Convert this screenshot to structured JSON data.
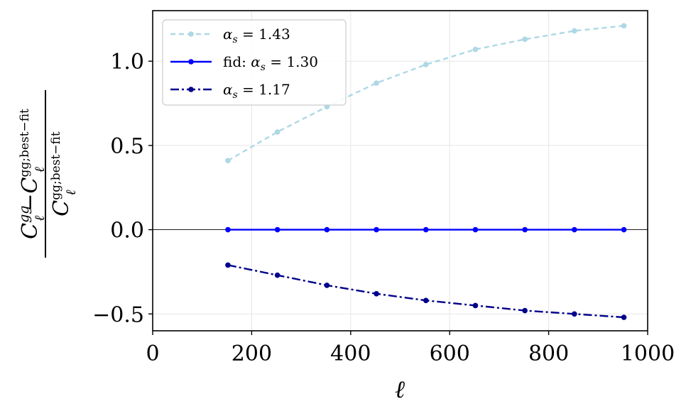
{
  "chart_data": {
    "type": "line",
    "title": "",
    "xlabel": "ℓ",
    "ylabel": {
      "num_a": "C",
      "num_a_sup": "gg",
      "num_a_sub": "ℓ",
      "minus": "−",
      "num_b": "C",
      "num_b_sup": "gg;best−fit",
      "num_b_sub": "ℓ",
      "den": "C",
      "den_sup": "gg;best−fit",
      "den_sub": "ℓ"
    },
    "xlim": [
      0,
      1000
    ],
    "ylim": [
      -0.6,
      1.3
    ],
    "xticks": [
      0,
      200,
      400,
      600,
      800,
      1000
    ],
    "xtick_labels": [
      "0",
      "200",
      "400",
      "600",
      "800",
      "1000"
    ],
    "yticks": [
      -0.5,
      0.0,
      0.5,
      1.0
    ],
    "ytick_labels": [
      "−0.5",
      "0.0",
      "0.5",
      "1.0"
    ],
    "grid": true,
    "zero_line": true,
    "legend_position": "top-left",
    "x": [
      152,
      252,
      352,
      452,
      552,
      652,
      752,
      852,
      952
    ],
    "series": [
      {
        "name": "α_s = 1.43",
        "label_parts": {
          "pre": "",
          "sym": "α",
          "sub": "s",
          "post": " = 1.43"
        },
        "color": "#add8e6",
        "dash": "7,5",
        "values": [
          0.41,
          0.58,
          0.73,
          0.87,
          0.98,
          1.07,
          1.13,
          1.18,
          1.21
        ]
      },
      {
        "name": "fid: α_s = 1.30",
        "label_parts": {
          "pre": "fid: ",
          "sym": "α",
          "sub": "s",
          "post": " = 1.30"
        },
        "color": "#0000ff",
        "dash": "",
        "values": [
          0.0,
          0.0,
          0.0,
          0.0,
          0.0,
          0.0,
          0.0,
          0.0,
          0.0
        ]
      },
      {
        "name": "α_s = 1.17",
        "label_parts": {
          "pre": "",
          "sym": "α",
          "sub": "s",
          "post": " = 1.17"
        },
        "color": "#00008b",
        "dash": "12,4,3,4",
        "values": [
          -0.21,
          -0.27,
          -0.33,
          -0.38,
          -0.42,
          -0.45,
          -0.48,
          -0.5,
          -0.52
        ]
      }
    ]
  }
}
